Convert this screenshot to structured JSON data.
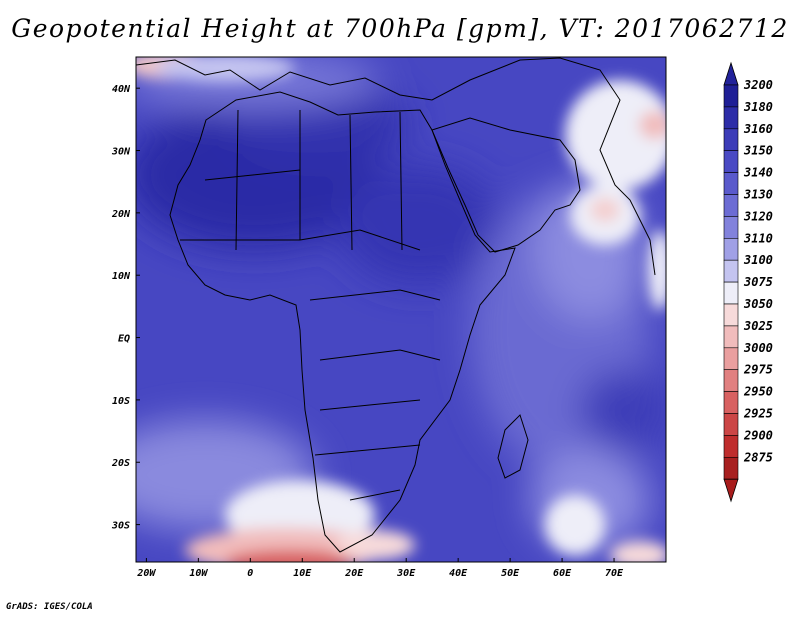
{
  "title": "Geopotential Height at 700hPa [gpm], VT: 2017062712",
  "credit": "GrADS: IGES/COLA",
  "map": {
    "lon_range": [
      -22,
      80
    ],
    "lat_range": [
      -36,
      45
    ],
    "x_ticks": [
      {
        "lon": -20,
        "label": "20W"
      },
      {
        "lon": -10,
        "label": "10W"
      },
      {
        "lon": 0,
        "label": "0"
      },
      {
        "lon": 10,
        "label": "10E"
      },
      {
        "lon": 20,
        "label": "20E"
      },
      {
        "lon": 30,
        "label": "30E"
      },
      {
        "lon": 40,
        "label": "40E"
      },
      {
        "lon": 50,
        "label": "50E"
      },
      {
        "lon": 60,
        "label": "60E"
      },
      {
        "lon": 70,
        "label": "70E"
      }
    ],
    "y_ticks": [
      {
        "lat": 40,
        "label": "40N"
      },
      {
        "lat": 30,
        "label": "30N"
      },
      {
        "lat": 20,
        "label": "20N"
      },
      {
        "lat": 10,
        "label": "10N"
      },
      {
        "lat": 0,
        "label": "EQ"
      },
      {
        "lat": -10,
        "label": "10S"
      },
      {
        "lat": -20,
        "label": "20S"
      },
      {
        "lat": -30,
        "label": "30S"
      }
    ]
  },
  "colorbar": {
    "levels": [
      "3200",
      "3180",
      "3160",
      "3150",
      "3140",
      "3130",
      "3120",
      "3110",
      "3100",
      "3075",
      "3050",
      "3025",
      "3000",
      "2975",
      "2950",
      "2925",
      "2900",
      "2875"
    ],
    "colors": [
      "#1f1f96",
      "#2d2da8",
      "#3c3cb8",
      "#4a4ac4",
      "#5a5acc",
      "#6c6cd4",
      "#8282dc",
      "#a0a0e6",
      "#c4c4f0",
      "#eeeef8",
      "#f7dada",
      "#f1bcbc",
      "#ea9f9f",
      "#e18080",
      "#d86161",
      "#cc4646",
      "#bf2d2d",
      "#a82020"
    ],
    "ends": {
      "top": "#22229a",
      "bottom": "#a81c1c"
    }
  }
}
